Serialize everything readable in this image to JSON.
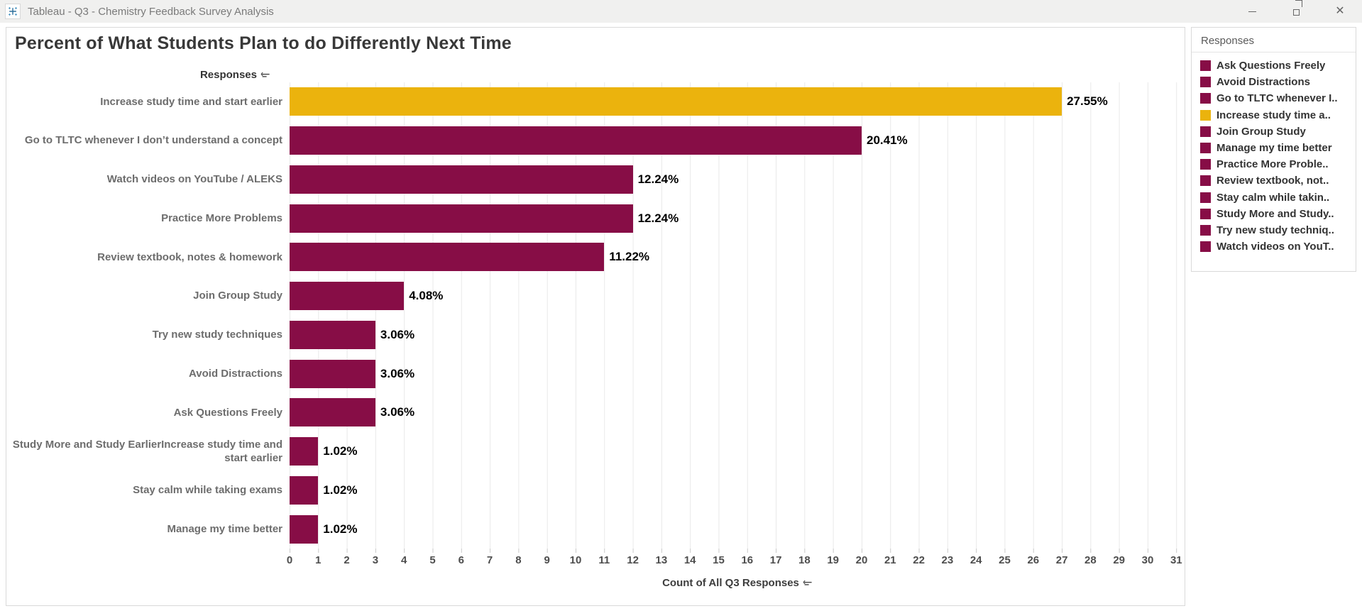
{
  "window": {
    "title": "Tableau - Q3 - Chemistry Feedback Survey Analysis",
    "controls": [
      "minimize",
      "restore",
      "close"
    ]
  },
  "chart": {
    "title": "Percent of What Students Plan to do Differently Next Time",
    "rows_header": "Responses",
    "xlabel": "Count of All Q3 Responses"
  },
  "chart_data": {
    "type": "bar",
    "orientation": "horizontal",
    "title": "Percent of What Students Plan to do Differently Next Time",
    "categories": [
      "Increase study time and start earlier",
      "Go to TLTC whenever I don’t understand a concept",
      "Watch videos on YouTube / ALEKS",
      "Practice More Problems",
      "Review textbook, notes & homework",
      "Join Group Study",
      "Try new study techniques",
      "Avoid Distractions",
      "Ask Questions Freely",
      "Study More and Study EarlierIncrease study time and start earlier",
      "Stay calm while taking exams",
      "Manage my time better"
    ],
    "counts": [
      27,
      20,
      12,
      12,
      11,
      4,
      3,
      3,
      3,
      1,
      1,
      1
    ],
    "percent_labels": [
      "27.55%",
      "20.41%",
      "12.24%",
      "12.24%",
      "11.22%",
      "4.08%",
      "3.06%",
      "3.06%",
      "3.06%",
      "1.02%",
      "1.02%",
      "1.02%"
    ],
    "xlabel": "Count of All Q3 Responses",
    "x_ticks": [
      0,
      1,
      2,
      3,
      4,
      5,
      6,
      7,
      8,
      9,
      10,
      11,
      12,
      13,
      14,
      15,
      16,
      17,
      18,
      19,
      20,
      21,
      22,
      23,
      24,
      25,
      26,
      27,
      28,
      29,
      30,
      31
    ],
    "xlim": [
      0,
      31.3
    ],
    "grid": "vertical",
    "legend_position": "right",
    "bar_color_default": "#870D46",
    "bar_color_highlight": "#EBB30D",
    "highlighted_category": "Increase study time and start earlier"
  },
  "legend": {
    "title": "Responses",
    "items": [
      {
        "label": "Ask Questions Freely",
        "color": "#870D46"
      },
      {
        "label": "Avoid Distractions",
        "color": "#870D46"
      },
      {
        "label": "Go to TLTC whenever I..",
        "color": "#870D46"
      },
      {
        "label": "Increase study time a..",
        "color": "#EBB30D"
      },
      {
        "label": "Join Group Study",
        "color": "#870D46"
      },
      {
        "label": "Manage my time better",
        "color": "#870D46"
      },
      {
        "label": "Practice More Proble..",
        "color": "#870D46"
      },
      {
        "label": "Review textbook, not..",
        "color": "#870D46"
      },
      {
        "label": "Stay calm while takin..",
        "color": "#870D46"
      },
      {
        "label": "Study More and Study..",
        "color": "#870D46"
      },
      {
        "label": "Try new study techniq..",
        "color": "#870D46"
      },
      {
        "label": "Watch videos on YouT..",
        "color": "#870D46"
      }
    ]
  },
  "icons": {
    "app_icon": "tableau-logo-icon",
    "sort_icon": "sort-descending-icon"
  }
}
